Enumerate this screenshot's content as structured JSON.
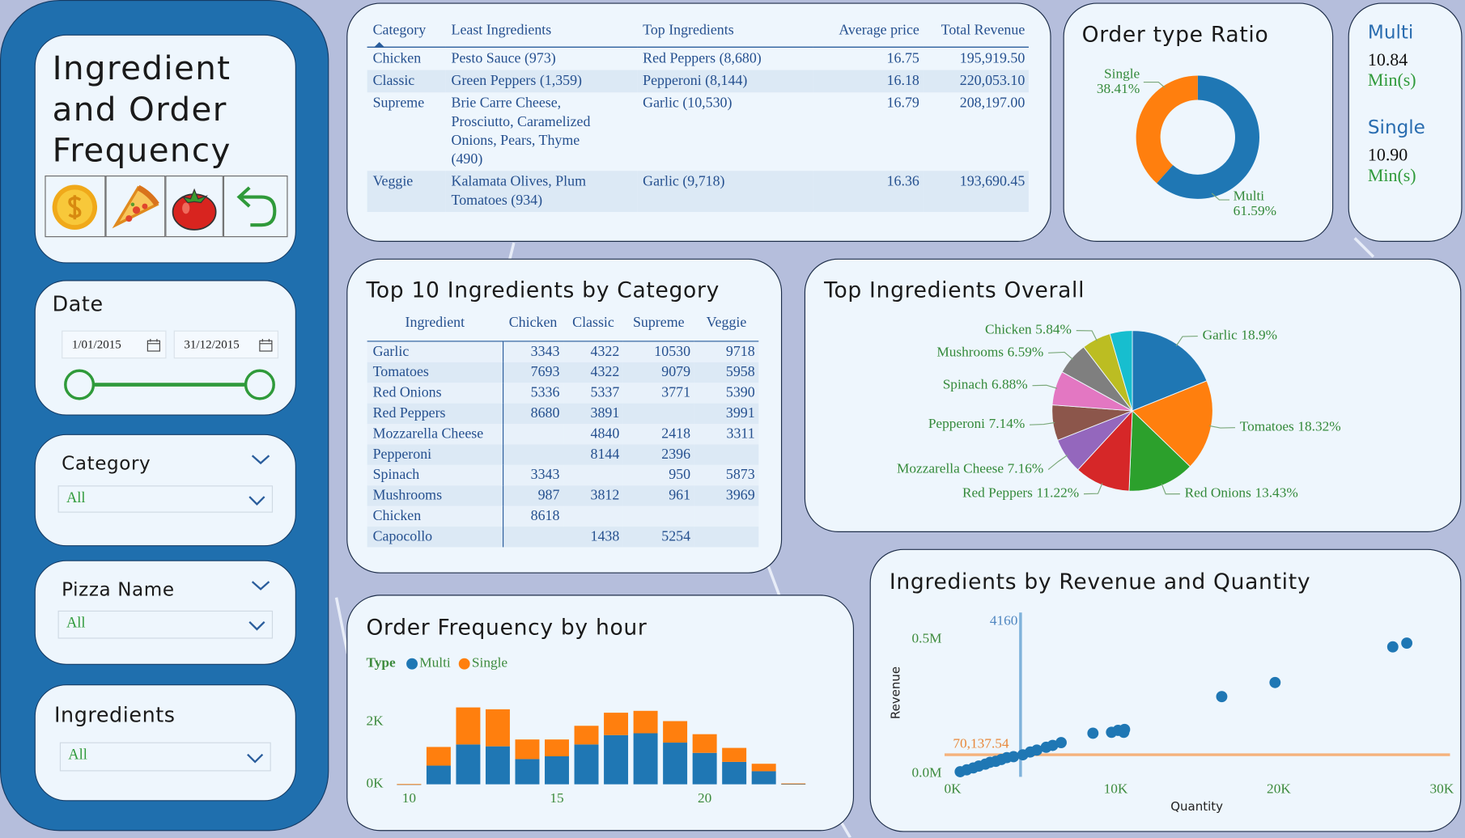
{
  "sidebar": {
    "title": "Ingredient and Order Frequency",
    "date": {
      "label": "Date",
      "start": "1/01/2015",
      "end": "31/12/2015"
    },
    "slicers": [
      {
        "label": "Category",
        "value": "All"
      },
      {
        "label": "Pizza Name",
        "value": "All"
      },
      {
        "label": "Ingredients",
        "value": "All"
      }
    ]
  },
  "summary_table": {
    "columns": [
      "Category",
      "Least Ingredients",
      "Top Ingredients",
      "Average price",
      "Total Revenue"
    ],
    "rows": [
      [
        "Chicken",
        "Pesto Sauce (973)",
        "Red Peppers (8,680)",
        "16.75",
        "195,919.50"
      ],
      [
        "Classic",
        "Green Peppers (1,359)",
        "Pepperoni (8,144)",
        "16.18",
        "220,053.10"
      ],
      [
        "Supreme",
        "Brie Carre Cheese, Prosciutto, Caramelized Onions, Pears, Thyme (490)",
        "Garlic (10,530)",
        "16.79",
        "208,197.00"
      ],
      [
        "Veggie",
        "Kalamata Olives, Plum Tomatoes (934)",
        "Garlic (9,718)",
        "16.36",
        "193,690.45"
      ]
    ]
  },
  "cards": [
    {
      "label": "Multi",
      "value": "10.84",
      "unit": "Min(s)"
    },
    {
      "label": "Single",
      "value": "10.90",
      "unit": "Min(s)"
    }
  ],
  "top10_table": {
    "title": "Top 10 Ingredients by Category",
    "columns": [
      "Ingredient",
      "Chicken",
      "Classic",
      "Supreme",
      "Veggie"
    ],
    "rows": [
      [
        "Garlic",
        3343,
        4322,
        10530,
        9718
      ],
      [
        "Tomatoes",
        7693,
        4322,
        9079,
        5958
      ],
      [
        "Red Onions",
        5336,
        5337,
        3771,
        5390
      ],
      [
        "Red Peppers",
        8680,
        3891,
        null,
        3991
      ],
      [
        "Mozzarella Cheese",
        null,
        4840,
        2418,
        3311
      ],
      [
        "Pepperoni",
        null,
        8144,
        2396,
        null
      ],
      [
        "Spinach",
        3343,
        null,
        950,
        5873
      ],
      [
        "Mushrooms",
        987,
        3812,
        961,
        3969
      ],
      [
        "Chicken",
        8618,
        null,
        null,
        null
      ],
      [
        "Capocollo",
        null,
        1438,
        5254,
        null
      ]
    ]
  },
  "chart_data": [
    {
      "type": "pie",
      "donut": true,
      "title": "Order type Ratio",
      "categories": [
        "Multi",
        "Single"
      ],
      "values": [
        61.59,
        38.41
      ],
      "value_labels": [
        "61.59%",
        "38.41%"
      ],
      "colors": [
        "#1f77b4",
        "#ff7f0e"
      ]
    },
    {
      "type": "pie",
      "title": "Top Ingredients Overall",
      "categories": [
        "Garlic",
        "Tomatoes",
        "Red Onions",
        "Red Peppers",
        "Mozzarella Cheese",
        "Pepperoni",
        "Spinach",
        "Mushrooms",
        "Chicken",
        null
      ],
      "values": [
        18.9,
        18.32,
        13.43,
        11.22,
        7.16,
        7.14,
        6.88,
        6.59,
        5.84,
        4.52
      ],
      "value_labels": [
        "18.9%",
        "18.32%",
        "13.43%",
        "11.22%",
        "7.16%",
        "7.14%",
        "6.88%",
        "6.59%",
        "5.84%",
        null
      ],
      "colors": [
        "#1f77b4",
        "#ff7f0e",
        "#2ca02c",
        "#d62728",
        "#9467bd",
        "#8c564b",
        "#e377c2",
        "#7f7f7f",
        "#bcbd22",
        "#17becf"
      ]
    },
    {
      "type": "bar",
      "stacked": true,
      "title": "Order Frequency by hour",
      "legend_title": "Type",
      "x": [
        10,
        11,
        12,
        13,
        14,
        15,
        16,
        17,
        18,
        19,
        20,
        21,
        22,
        23
      ],
      "series": [
        {
          "name": "Multi",
          "color": "#1f77b4",
          "values": [
            4,
            600,
            1280,
            1220,
            810,
            900,
            1280,
            1580,
            1640,
            1340,
            1010,
            720,
            420,
            14
          ]
        },
        {
          "name": "Single",
          "color": "#ff7f0e",
          "values": [
            4,
            600,
            1190,
            1190,
            630,
            540,
            600,
            720,
            720,
            690,
            600,
            450,
            240,
            14
          ]
        }
      ],
      "xlim": [
        9.5,
        23.5
      ],
      "xticks": [
        10,
        15,
        20
      ],
      "ylim": [
        0,
        3000
      ],
      "yticks": [
        {
          "value": 0,
          "label": "0K"
        },
        {
          "value": 2000,
          "label": "2K"
        }
      ]
    },
    {
      "type": "scatter",
      "title": "Ingredients by Revenue and Quantity",
      "x_label": "Quantity",
      "y_label": "Revenue",
      "color": "#1f77b4",
      "x": [
        460,
        860,
        1260,
        1600,
        2000,
        2290,
        2640,
        2980,
        3320,
        3730,
        4300,
        4760,
        5160,
        5730,
        6130,
        6650,
        8600,
        9740,
        10140,
        10490,
        10540,
        16500,
        19770,
        26990,
        27850
      ],
      "values": [
        7000,
        14000,
        21000,
        28000,
        35000,
        42000,
        45500,
        52400,
        59400,
        62900,
        69900,
        80400,
        87400,
        97900,
        104900,
        115400,
        150300,
        153800,
        160800,
        153800,
        164300,
        286700,
        339200,
        472000,
        486000
      ],
      "xlim": [
        -500,
        30500
      ],
      "xticks": [
        {
          "value": 0,
          "label": "0K"
        },
        {
          "value": 10000,
          "label": "10K"
        },
        {
          "value": 20000,
          "label": "20K"
        },
        {
          "value": 30000,
          "label": "30K"
        }
      ],
      "ylim": [
        -40000,
        600000
      ],
      "yticks": [
        {
          "value": 0,
          "label": "0.0M"
        },
        {
          "value": 500000,
          "label": "0.5M"
        }
      ],
      "x_reference": 4160,
      "y_reference": {
        "value": 70137.54,
        "label": "70,137.54"
      }
    }
  ]
}
